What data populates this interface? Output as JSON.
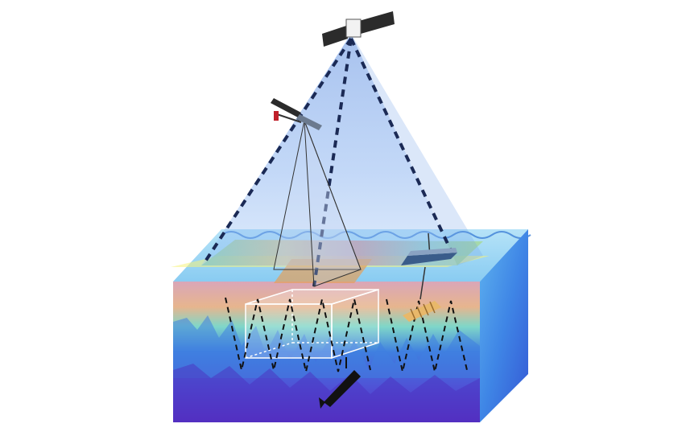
{
  "diagram": {
    "components": [
      {
        "id": "satellite",
        "kind": "observation-platform"
      },
      {
        "id": "aircraft-drone",
        "kind": "observation-platform"
      },
      {
        "id": "surface-vessel",
        "kind": "observation-platform"
      },
      {
        "id": "glider",
        "kind": "observation-platform"
      },
      {
        "id": "underwater-vehicle",
        "kind": "observation-platform"
      },
      {
        "id": "ocean-volume",
        "kind": "environment"
      },
      {
        "id": "sea-surface-field",
        "kind": "sensed-field"
      },
      {
        "id": "sampling-box",
        "kind": "study-volume"
      }
    ],
    "colors": {
      "sky_cone": "#6f9fe8",
      "sea_surface_band": "#f3f07a",
      "ocean_top": "#8fd3f2",
      "ocean_deep": "#4a2fbf",
      "ocean_side": "#3f7fe0",
      "hull": "#3a5c8a",
      "panel": "#2d2d2d"
    },
    "icons": [
      "satellite-icon",
      "drone-icon",
      "vessel-icon",
      "glider-icon",
      "auv-icon",
      "ocean-block-icon"
    ]
  }
}
